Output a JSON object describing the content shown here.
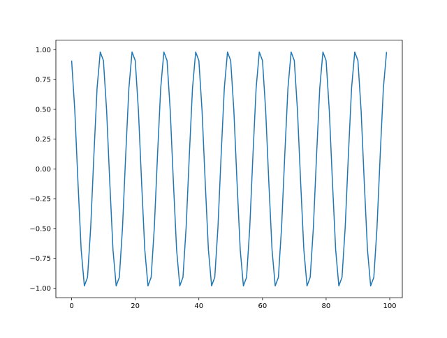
{
  "chart_data": {
    "type": "line",
    "title": "",
    "xlabel": "",
    "ylabel": "",
    "xlim": [
      -4.95,
      103.95
    ],
    "ylim": [
      -1.0805,
      1.0805
    ],
    "grid": false,
    "xticks": [
      0,
      20,
      40,
      60,
      80,
      100
    ],
    "xtick_labels": [
      "0",
      "20",
      "40",
      "60",
      "80",
      "100"
    ],
    "yticks": [
      1,
      0.75,
      0.5,
      0.25,
      0,
      -0.25,
      -0.5,
      -0.75,
      -1
    ],
    "ytick_labels": [
      "1.00",
      "0.75",
      "0.50",
      "0.25",
      "0.00",
      "−0.25",
      "−0.50",
      "−0.75",
      "−1.00"
    ],
    "series": [
      {
        "color": "#1f77b4",
        "x": [
          0,
          1,
          2,
          3,
          4,
          5,
          6,
          7,
          8,
          9,
          10,
          11,
          12,
          13,
          14,
          15,
          16,
          17,
          18,
          19,
          20,
          21,
          22,
          23,
          24,
          25,
          26,
          27,
          28,
          29,
          30,
          31,
          32,
          33,
          34,
          35,
          36,
          37,
          38,
          39,
          40,
          41,
          42,
          43,
          44,
          45,
          46,
          47,
          48,
          49,
          50,
          51,
          52,
          53,
          54,
          55,
          56,
          57,
          58,
          59,
          60,
          61,
          62,
          63,
          64,
          65,
          66,
          67,
          68,
          69,
          70,
          71,
          72,
          73,
          74,
          75,
          76,
          77,
          78,
          79,
          80,
          81,
          82,
          83,
          84,
          85,
          86,
          87,
          88,
          89,
          90,
          91,
          92,
          93,
          94,
          95,
          96,
          97,
          98,
          99
        ],
        "y": [
          0.909,
          0.49,
          -0.115,
          -0.677,
          -0.981,
          -0.909,
          -0.49,
          0.115,
          0.677,
          0.981,
          0.909,
          0.49,
          -0.115,
          -0.677,
          -0.981,
          -0.909,
          -0.49,
          0.115,
          0.677,
          0.981,
          0.909,
          0.49,
          -0.115,
          -0.677,
          -0.981,
          -0.909,
          -0.49,
          0.115,
          0.677,
          0.981,
          0.909,
          0.49,
          -0.115,
          -0.677,
          -0.981,
          -0.909,
          -0.49,
          0.115,
          0.677,
          0.981,
          0.909,
          0.49,
          -0.115,
          -0.677,
          -0.981,
          -0.909,
          -0.49,
          0.115,
          0.677,
          0.981,
          0.909,
          0.49,
          -0.115,
          -0.677,
          -0.981,
          -0.909,
          -0.49,
          0.115,
          0.677,
          0.981,
          0.909,
          0.49,
          -0.115,
          -0.677,
          -0.981,
          -0.909,
          -0.49,
          0.115,
          0.677,
          0.981,
          0.909,
          0.49,
          -0.115,
          -0.677,
          -0.981,
          -0.909,
          -0.49,
          0.115,
          0.677,
          0.981,
          0.909,
          0.49,
          -0.115,
          -0.677,
          -0.981,
          -0.909,
          -0.49,
          0.115,
          0.677,
          0.981,
          0.909,
          0.49,
          -0.115,
          -0.677,
          -0.981,
          -0.909,
          -0.49,
          0.115,
          0.677,
          0.981
        ]
      }
    ]
  }
}
